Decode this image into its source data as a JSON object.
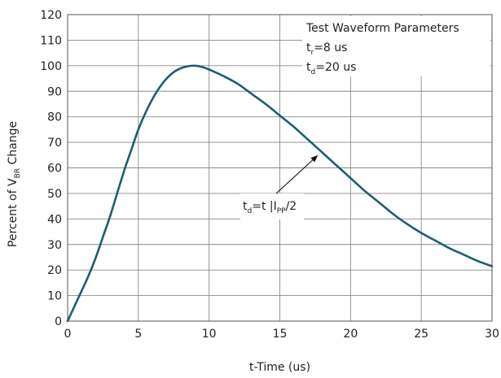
{
  "chart_data": {
    "type": "line",
    "xlabel": "t-Time (us)",
    "ylabel": {
      "prefix": "Percent of V",
      "sub": "BR",
      "suffix": " Change"
    },
    "xlim": [
      0,
      30
    ],
    "ylim": [
      0,
      120
    ],
    "xticks": [
      0,
      5,
      10,
      15,
      20,
      25,
      30
    ],
    "yticks": [
      0,
      10,
      20,
      30,
      40,
      50,
      60,
      70,
      80,
      90,
      100,
      110,
      120
    ],
    "grid": true,
    "colors": {
      "curve": "#1e5d72",
      "grid": "#8a8a8a",
      "text": "#222222"
    },
    "x": [
      0,
      0.5,
      1,
      1.5,
      2,
      2.5,
      3,
      3.5,
      4,
      4.5,
      5,
      5.5,
      6,
      6.5,
      7,
      7.5,
      8,
      8.5,
      9,
      9.5,
      10,
      11,
      12,
      13,
      14,
      15,
      16,
      17,
      18,
      19,
      20,
      21,
      22,
      23,
      24,
      25,
      26,
      27,
      28,
      29,
      30
    ],
    "y": [
      0,
      6,
      12,
      18,
      25,
      33,
      41,
      50,
      59,
      67,
      75,
      81.5,
      87,
      91.5,
      95,
      97.5,
      99,
      99.8,
      100,
      99.5,
      98.5,
      96,
      93,
      89,
      85,
      80.5,
      76,
      71,
      66,
      61,
      56,
      51,
      46.5,
      42,
      38,
      34.5,
      31.5,
      28.5,
      26,
      23.5,
      21.5
    ],
    "legend_box": {
      "title": "Test Waveform Parameters",
      "lines": [
        {
          "prefix": "t",
          "sub": "r",
          "suffix": "=8 us"
        },
        {
          "prefix": "t",
          "sub": "d",
          "suffix": "=20 us"
        }
      ]
    },
    "annotation": {
      "parts": [
        {
          "text": "t",
          "sub": false
        },
        {
          "text": "d",
          "sub": true
        },
        {
          "text": "=t |I",
          "sub": false
        },
        {
          "text": "PP",
          "sub": true
        },
        {
          "text": "/2",
          "sub": false
        }
      ],
      "arrow_to": {
        "x": 17.7,
        "y": 65
      }
    }
  }
}
